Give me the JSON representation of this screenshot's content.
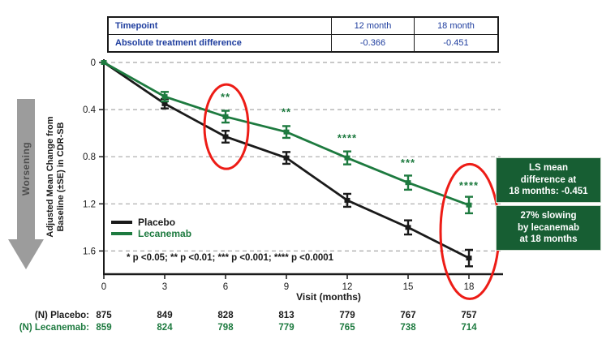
{
  "top_table": {
    "columns": [
      "Timepoint",
      "12 month",
      "18 month"
    ],
    "rows": [
      [
        "Absolute treatment difference",
        "-0.366",
        "-0.451"
      ]
    ]
  },
  "worsening_label": "Worsening",
  "y_axis_label_line1": "Adjusted Mean Change from",
  "y_axis_label_line2": "Baseline (±SE) in CDR-SB",
  "x_axis_label": "Visit (months)",
  "footnote": "* p <0.05; ** p <0.01; *** p <0.001; **** p <0.0001",
  "legend": [
    {
      "name": "Placebo",
      "color": "#1a1a1a"
    },
    {
      "name": "Lecanemab",
      "color": "#1d7a3f"
    }
  ],
  "annotation_boxes": [
    {
      "lines": [
        "LS mean",
        "difference at",
        "18 months: -0.451"
      ]
    },
    {
      "lines": [
        "27% slowing",
        "by lecanemab",
        "at 18 months"
      ]
    }
  ],
  "n_table": {
    "rows": [
      {
        "label": "(N) Placebo:",
        "color": "#1a1a1a",
        "values": [
          "875",
          "849",
          "828",
          "813",
          "779",
          "767",
          "757"
        ]
      },
      {
        "label": "(N) Lecanemab:",
        "color": "#1d7a3f",
        "values": [
          "859",
          "824",
          "798",
          "779",
          "765",
          "738",
          "714"
        ]
      }
    ]
  },
  "chart_data": {
    "type": "line",
    "x": [
      0,
      3,
      6,
      9,
      12,
      15,
      18
    ],
    "series": [
      {
        "name": "Placebo",
        "color": "#1a1a1a",
        "values": [
          0,
          0.35,
          0.63,
          0.81,
          1.17,
          1.4,
          1.66
        ],
        "se": [
          0,
          0.04,
          0.05,
          0.05,
          0.055,
          0.06,
          0.07
        ]
      },
      {
        "name": "Lecanemab",
        "color": "#1d7a3f",
        "values": [
          0,
          0.29,
          0.46,
          0.59,
          0.81,
          1.02,
          1.21
        ],
        "se": [
          0,
          0.04,
          0.05,
          0.05,
          0.055,
          0.06,
          0.07
        ]
      }
    ],
    "significance": [
      {
        "month": 6,
        "stars": "**"
      },
      {
        "month": 9,
        "stars": "**"
      },
      {
        "month": 12,
        "stars": "****"
      },
      {
        "month": 15,
        "stars": "***"
      },
      {
        "month": 18,
        "stars": "****"
      }
    ],
    "circled_months": [
      6,
      18
    ],
    "yticks": [
      0,
      0.4,
      0.8,
      1.2,
      1.6
    ],
    "xticks": [
      0,
      3,
      6,
      9,
      12,
      15,
      18
    ],
    "ylim": [
      0,
      1.8
    ],
    "y_axis_inverted": true,
    "grid": "horizontal-dashed",
    "legend_position": "lower-left",
    "title": "",
    "xlabel": "Visit (months)",
    "ylabel": "Adjusted Mean Change from Baseline (±SE) in CDR-SB"
  },
  "colors": {
    "table_text_blue": "#1e3d9e",
    "lecanemab_green": "#1d7a3f",
    "annotation_box_green": "#175e33",
    "highlight_red": "#ed1c16",
    "gridline_gray": "#a8a8a8",
    "arrow_gray": "#9c9c9c"
  }
}
